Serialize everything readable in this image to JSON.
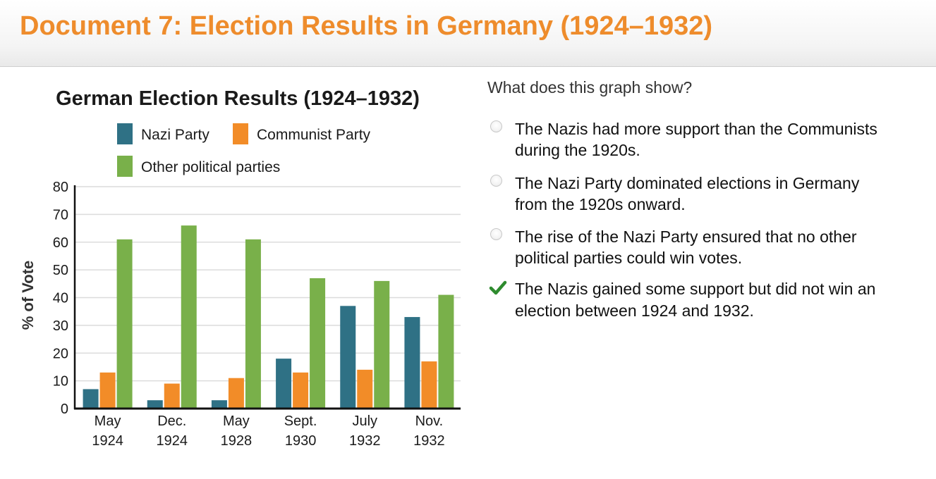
{
  "header": {
    "title": "Document 7: Election Results in Germany (1924–1932)"
  },
  "chart_data": {
    "type": "bar",
    "title": "German Election Results (1924–1932)",
    "xlabel": "",
    "ylabel": "% of Vote",
    "ylim": [
      0,
      80
    ],
    "yticks": [
      "0",
      "10",
      "20",
      "30",
      "40",
      "50",
      "60",
      "70",
      "80"
    ],
    "categories": [
      [
        "May",
        "1924"
      ],
      [
        "Dec.",
        "1924"
      ],
      [
        "May",
        "1928"
      ],
      [
        "Sept.",
        "1930"
      ],
      [
        "July",
        "1932"
      ],
      [
        "Nov.",
        "1932"
      ]
    ],
    "series": [
      {
        "name": "Nazi Party",
        "color": "#2f7185",
        "values": [
          7,
          3,
          3,
          18,
          37,
          33
        ]
      },
      {
        "name": "Communist Party",
        "color": "#f28c28",
        "values": [
          13,
          9,
          11,
          13,
          14,
          17
        ]
      },
      {
        "name": "Other political parties",
        "color": "#79b04a",
        "values": [
          61,
          66,
          61,
          47,
          46,
          41
        ]
      }
    ],
    "grid": true,
    "legend": "top"
  },
  "quiz": {
    "question": "What does this graph show?",
    "options": [
      {
        "lines": [
          "The Nazis had more support than the Communists",
          "during the 1920s."
        ],
        "selected": false
      },
      {
        "lines": [
          "The Nazi Party dominated elections in Germany",
          "from the 1920s onward."
        ],
        "selected": false
      },
      {
        "lines": [
          "The rise of the Nazi Party ensured that no other",
          "political parties could win votes."
        ],
        "selected": false
      },
      {
        "lines": [
          "The Nazis gained some support but did not win an",
          "election between 1924 and 1932."
        ],
        "selected": true
      }
    ],
    "correct_color": "#2e8b2e"
  }
}
